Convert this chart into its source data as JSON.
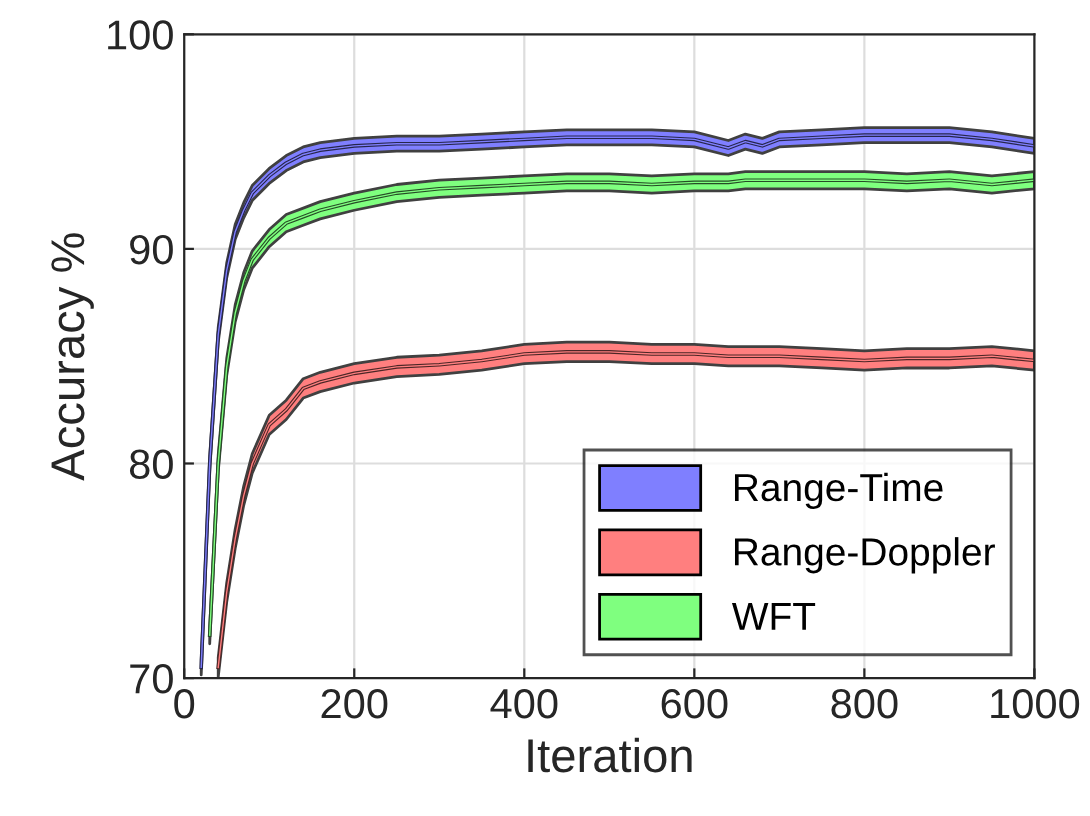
{
  "chart_data": {
    "type": "line",
    "xlabel": "Iteration",
    "ylabel": "Accuracy %",
    "x": [
      20,
      30,
      40,
      50,
      60,
      70,
      80,
      100,
      120,
      140,
      160,
      200,
      250,
      300,
      350,
      400,
      450,
      500,
      550,
      600,
      640,
      660,
      680,
      700,
      750,
      800,
      850,
      900,
      950,
      1000
    ],
    "xlim": [
      0,
      1000
    ],
    "xticks": [
      0,
      200,
      400,
      600,
      800,
      1000
    ],
    "ylim": [
      70,
      100
    ],
    "yticks": [
      70,
      80,
      90,
      100
    ],
    "grid": true,
    "legend": "bottom right",
    "series": [
      {
        "name": "Range-Time",
        "color": "#7f7fff",
        "values": [
          70.5,
          80,
          86,
          89,
          90.8,
          91.8,
          92.6,
          93.4,
          94.0,
          94.4,
          94.6,
          94.8,
          94.9,
          94.9,
          95.0,
          95.1,
          95.2,
          95.2,
          95.2,
          95.1,
          94.7,
          95.0,
          94.8,
          95.1,
          95.2,
          95.3,
          95.3,
          95.3,
          95.1,
          94.8
        ],
        "lower": [
          70.15,
          79.65,
          85.65,
          88.65,
          90.45,
          91.45,
          92.25,
          93.05,
          93.65,
          94.05,
          94.25,
          94.45,
          94.55,
          94.55,
          94.65,
          94.75,
          94.85,
          94.85,
          94.85,
          94.75,
          94.35,
          94.65,
          94.45,
          94.75,
          94.85,
          94.95,
          94.95,
          94.95,
          94.75,
          94.45
        ],
        "upper": [
          70.85,
          80.35,
          86.35,
          89.35,
          91.15,
          92.15,
          92.95,
          93.75,
          94.35,
          94.75,
          94.95,
          95.15,
          95.25,
          95.25,
          95.35,
          95.45,
          95.55,
          95.55,
          95.55,
          95.45,
          95.05,
          95.35,
          95.15,
          95.45,
          95.55,
          95.65,
          95.65,
          95.65,
          95.45,
          95.15
        ]
      },
      {
        "name": "Range-Doppler",
        "color": "#ff7f7f",
        "values": [
          null,
          null,
          70.5,
          74,
          76.5,
          78.5,
          80,
          81.8,
          82.5,
          83.5,
          83.8,
          84.2,
          84.5,
          84.6,
          84.8,
          85.1,
          85.2,
          85.2,
          85.1,
          85.1,
          85.0,
          85.0,
          85.0,
          85.0,
          84.9,
          84.8,
          84.9,
          84.9,
          85.0,
          84.8
        ],
        "lower": [
          null,
          null,
          70.05,
          73.55,
          76.05,
          78.05,
          79.55,
          81.35,
          82.05,
          83.05,
          83.35,
          83.75,
          84.05,
          84.15,
          84.35,
          84.65,
          84.75,
          84.75,
          84.65,
          84.65,
          84.55,
          84.55,
          84.55,
          84.55,
          84.45,
          84.35,
          84.45,
          84.45,
          84.55,
          84.35
        ],
        "upper": [
          null,
          null,
          70.95,
          74.45,
          76.95,
          78.95,
          80.45,
          82.25,
          82.95,
          83.95,
          84.25,
          84.65,
          84.95,
          85.05,
          85.25,
          85.55,
          85.65,
          85.65,
          85.55,
          85.55,
          85.45,
          85.45,
          85.45,
          85.45,
          85.35,
          85.25,
          85.35,
          85.35,
          85.45,
          85.25
        ]
      },
      {
        "name": "WFT",
        "color": "#7fff7f",
        "values": [
          null,
          72,
          80,
          84.5,
          87,
          88.5,
          89.5,
          90.5,
          91.2,
          91.5,
          91.8,
          92.2,
          92.6,
          92.8,
          92.9,
          93.0,
          93.1,
          93.1,
          93.0,
          93.1,
          93.1,
          93.2,
          93.2,
          93.2,
          93.2,
          93.2,
          93.1,
          93.2,
          93.0,
          93.2
        ],
        "lower": [
          null,
          71.6,
          79.6,
          84.1,
          86.6,
          88.1,
          89.1,
          90.1,
          90.8,
          91.1,
          91.4,
          91.8,
          92.2,
          92.4,
          92.5,
          92.6,
          92.7,
          92.7,
          92.6,
          92.7,
          92.7,
          92.8,
          92.8,
          92.8,
          92.8,
          92.8,
          92.7,
          92.8,
          92.6,
          92.8
        ],
        "upper": [
          null,
          72.4,
          80.4,
          84.9,
          87.4,
          88.9,
          89.9,
          90.9,
          91.6,
          91.9,
          92.2,
          92.6,
          93.0,
          93.2,
          93.3,
          93.4,
          93.5,
          93.5,
          93.4,
          93.5,
          93.5,
          93.6,
          93.6,
          93.6,
          93.6,
          93.6,
          93.5,
          93.6,
          93.4,
          93.6
        ]
      }
    ]
  }
}
